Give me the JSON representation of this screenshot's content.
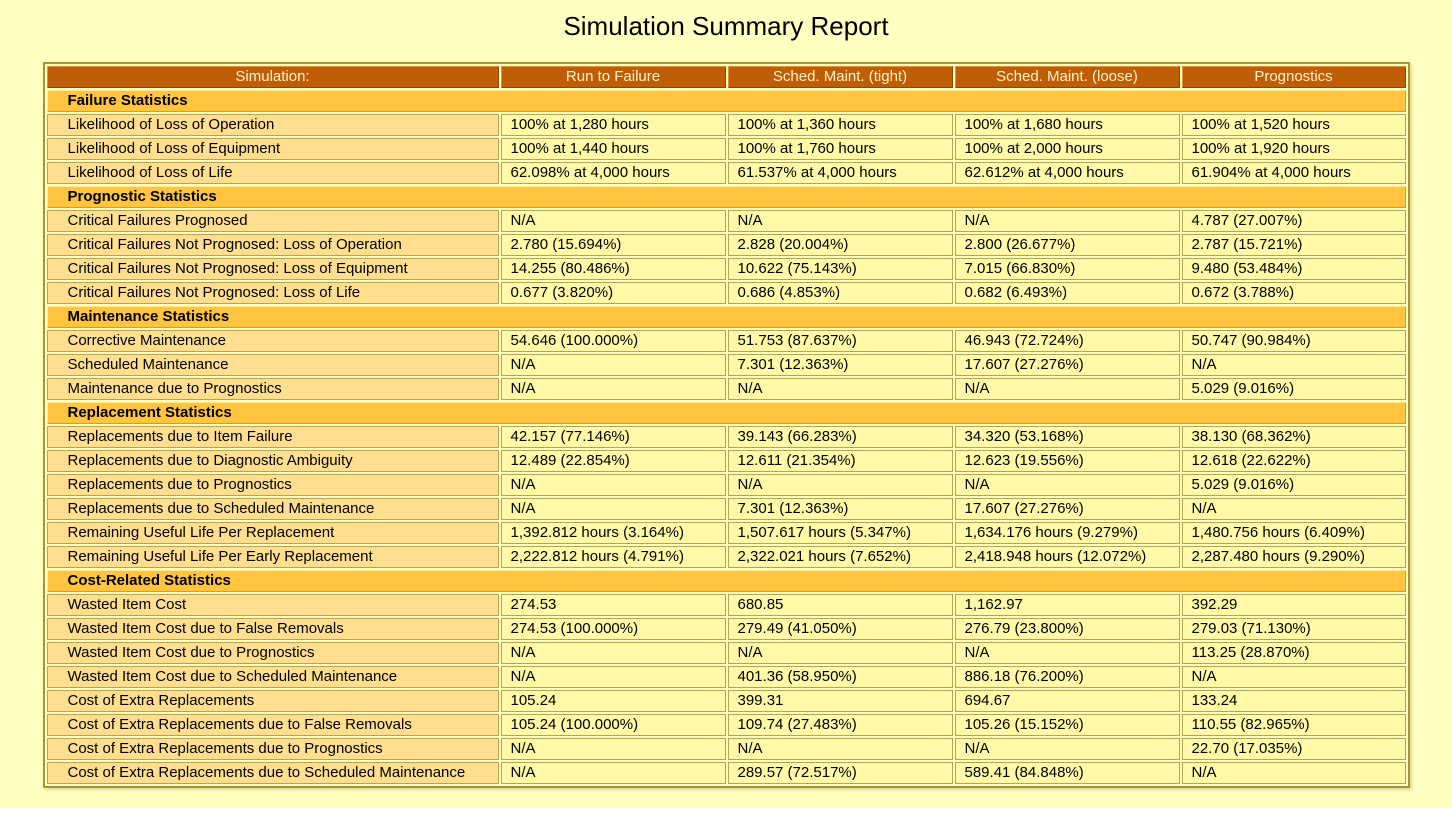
{
  "title": "Simulation Summary Report",
  "colors": {
    "page_bg": "#FFFFC2",
    "header_bg": "#C05E08",
    "header_text": "#FFF2C8",
    "section_bg": "#FFC440",
    "label_bg": "#FFDF8F",
    "value_bg": "#FFF9A8",
    "cell_border": "#BCA14E",
    "outer_border": "#A99334"
  },
  "table": {
    "columns": [
      "Simulation:",
      "Run to Failure",
      "Sched. Maint. (tight)",
      "Sched. Maint. (loose)",
      "Prognostics"
    ],
    "sections": [
      {
        "name": "Failure Statistics",
        "rows": [
          {
            "label": "Likelihood of Loss of Operation",
            "values": [
              "100% at 1,280 hours",
              "100% at 1,360 hours",
              "100% at 1,680 hours",
              "100% at 1,520 hours"
            ]
          },
          {
            "label": "Likelihood of Loss of Equipment",
            "values": [
              "100% at 1,440 hours",
              "100% at 1,760 hours",
              "100% at 2,000 hours",
              "100% at 1,920 hours"
            ]
          },
          {
            "label": "Likelihood of Loss of Life",
            "values": [
              "62.098% at 4,000 hours",
              "61.537% at 4,000 hours",
              "62.612% at 4,000 hours",
              "61.904% at 4,000 hours"
            ]
          }
        ]
      },
      {
        "name": "Prognostic Statistics",
        "rows": [
          {
            "label": "Critical Failures Prognosed",
            "values": [
              "N/A",
              "N/A",
              "N/A",
              "4.787 (27.007%)"
            ]
          },
          {
            "label": "Critical Failures Not Prognosed: Loss of Operation",
            "values": [
              "2.780 (15.694%)",
              "2.828 (20.004%)",
              "2.800 (26.677%)",
              "2.787 (15.721%)"
            ]
          },
          {
            "label": "Critical Failures Not Prognosed: Loss of Equipment",
            "values": [
              "14.255 (80.486%)",
              "10.622 (75.143%)",
              "7.015 (66.830%)",
              "9.480 (53.484%)"
            ]
          },
          {
            "label": "Critical Failures Not Prognosed: Loss of Life",
            "values": [
              "0.677 (3.820%)",
              "0.686 (4.853%)",
              "0.682 (6.493%)",
              "0.672 (3.788%)"
            ]
          }
        ]
      },
      {
        "name": "Maintenance Statistics",
        "rows": [
          {
            "label": "Corrective Maintenance",
            "values": [
              "54.646 (100.000%)",
              "51.753 (87.637%)",
              "46.943 (72.724%)",
              "50.747 (90.984%)"
            ]
          },
          {
            "label": "Scheduled Maintenance",
            "values": [
              "N/A",
              "7.301 (12.363%)",
              "17.607 (27.276%)",
              "N/A"
            ]
          },
          {
            "label": "Maintenance due to Prognostics",
            "values": [
              "N/A",
              "N/A",
              "N/A",
              "5.029 (9.016%)"
            ]
          }
        ]
      },
      {
        "name": "Replacement Statistics",
        "rows": [
          {
            "label": "Replacements due to Item Failure",
            "values": [
              "42.157 (77.146%)",
              "39.143 (66.283%)",
              "34.320 (53.168%)",
              "38.130 (68.362%)"
            ]
          },
          {
            "label": "Replacements due to Diagnostic Ambiguity",
            "values": [
              "12.489 (22.854%)",
              "12.611 (21.354%)",
              "12.623 (19.556%)",
              "12.618 (22.622%)"
            ]
          },
          {
            "label": "Replacements due to Prognostics",
            "values": [
              "N/A",
              "N/A",
              "N/A",
              "5.029 (9.016%)"
            ]
          },
          {
            "label": "Replacements due to Scheduled Maintenance",
            "values": [
              "N/A",
              "7.301 (12.363%)",
              "17.607 (27.276%)",
              "N/A"
            ]
          },
          {
            "label": "Remaining Useful Life Per Replacement",
            "values": [
              "1,392.812 hours (3.164%)",
              "1,507.617 hours (5.347%)",
              "1,634.176 hours (9.279%)",
              "1,480.756 hours (6.409%)"
            ]
          },
          {
            "label": "Remaining Useful Life Per Early Replacement",
            "values": [
              "2,222.812 hours (4.791%)",
              "2,322.021 hours (7.652%)",
              "2,418.948 hours (12.072%)",
              "2,287.480 hours (9.290%)"
            ]
          }
        ]
      },
      {
        "name": "Cost-Related Statistics",
        "rows": [
          {
            "label": "Wasted Item Cost",
            "values": [
              "274.53",
              "680.85",
              "1,162.97",
              "392.29"
            ]
          },
          {
            "label": "Wasted Item Cost due to False Removals",
            "values": [
              "274.53 (100.000%)",
              "279.49 (41.050%)",
              "276.79 (23.800%)",
              "279.03 (71.130%)"
            ]
          },
          {
            "label": "Wasted Item Cost due to Prognostics",
            "values": [
              "N/A",
              "N/A",
              "N/A",
              "113.25 (28.870%)"
            ]
          },
          {
            "label": "Wasted Item Cost due to Scheduled Maintenance",
            "values": [
              "N/A",
              "401.36 (58.950%)",
              "886.18 (76.200%)",
              "N/A"
            ]
          },
          {
            "label": "Cost of Extra Replacements",
            "values": [
              "105.24",
              "399.31",
              "694.67",
              "133.24"
            ]
          },
          {
            "label": "Cost of Extra Replacements due to False Removals",
            "values": [
              "105.24 (100.000%)",
              "109.74 (27.483%)",
              "105.26 (15.152%)",
              "110.55 (82.965%)"
            ]
          },
          {
            "label": "Cost of Extra Replacements due to Prognostics",
            "values": [
              "N/A",
              "N/A",
              "N/A",
              "22.70 (17.035%)"
            ]
          },
          {
            "label": "Cost of Extra Replacements due to Scheduled Maintenance",
            "values": [
              "N/A",
              "289.57 (72.517%)",
              "589.41 (84.848%)",
              "N/A"
            ]
          }
        ]
      }
    ]
  }
}
